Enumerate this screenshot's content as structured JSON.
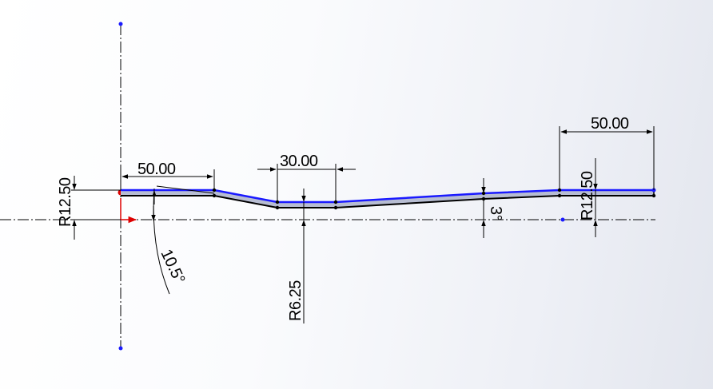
{
  "viewport": {
    "background": "light gray-blue gradient",
    "sketch_color": "#1a1aff",
    "axis_color": "#000000",
    "origin_marker_color": "#dd0000"
  },
  "dimensions": {
    "left_radius": "R12.50",
    "left_length": "50.00",
    "middle_length": "30.00",
    "right_length": "50.00",
    "right_radius": "R12.50",
    "center_radius": "R6.25",
    "left_angle": "10.5°",
    "right_angle": "3°"
  }
}
